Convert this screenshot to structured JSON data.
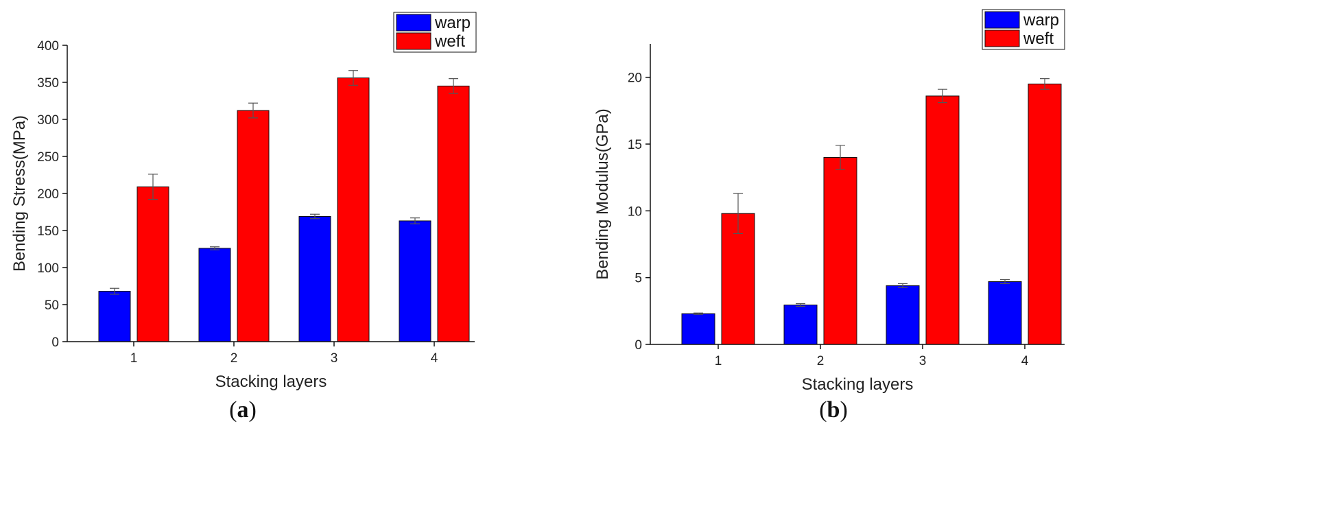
{
  "chart_data": [
    {
      "type": "bar",
      "panel": "a",
      "caption": "(a)",
      "xlabel": "Stacking layers",
      "ylabel": "Bending Stress(MPa)",
      "categories": [
        "1",
        "2",
        "3",
        "4"
      ],
      "ylim": [
        0,
        400
      ],
      "yticks": [
        0,
        50,
        100,
        150,
        200,
        250,
        300,
        350,
        400
      ],
      "legend_position": "top-right",
      "series": [
        {
          "name": "warp",
          "color": "#0000ff",
          "values": [
            68,
            126,
            169,
            163
          ],
          "errors": [
            4,
            2,
            3,
            4
          ]
        },
        {
          "name": "weft",
          "color": "#ff0000",
          "values": [
            209,
            312,
            356,
            345
          ],
          "errors": [
            17,
            10,
            10,
            10
          ]
        }
      ]
    },
    {
      "type": "bar",
      "panel": "b",
      "caption": "(b)",
      "xlabel": "Stacking layers",
      "ylabel": "Bending Modulus(GPa)",
      "categories": [
        "1",
        "2",
        "3",
        "4"
      ],
      "ylim": [
        0,
        22.5
      ],
      "yticks": [
        0,
        5,
        10,
        15,
        20
      ],
      "legend_position": "top-right",
      "series": [
        {
          "name": "warp",
          "color": "#0000ff",
          "values": [
            2.3,
            2.95,
            4.4,
            4.7
          ],
          "errors": [
            0.05,
            0.1,
            0.15,
            0.15
          ]
        },
        {
          "name": "weft",
          "color": "#ff0000",
          "values": [
            9.8,
            14.0,
            18.6,
            19.5
          ],
          "errors": [
            1.5,
            0.9,
            0.5,
            0.4
          ]
        }
      ]
    }
  ]
}
